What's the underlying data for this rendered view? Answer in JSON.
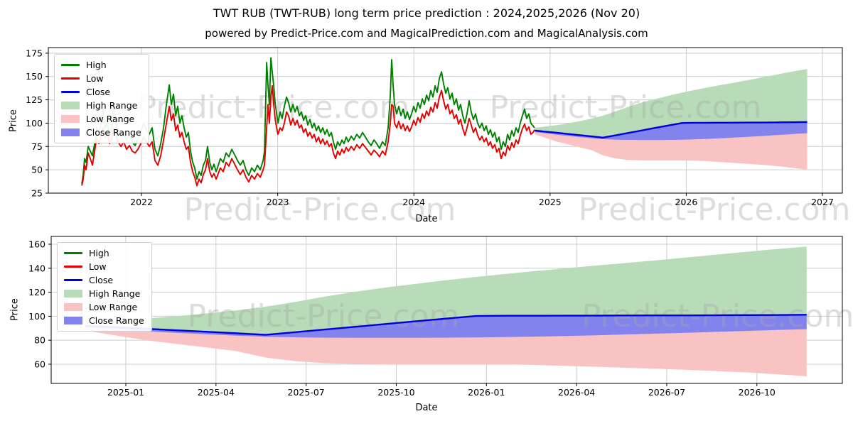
{
  "title": "TWT RUB (TWT-RUB) long term price prediction : 2024,2025,2026 (Nov 20)",
  "subtitle": "powered by Predict-Price.com and MagicalPrediction.com and MagicalAnalysis.com",
  "watermark": "Predict-Price.com",
  "colors": {
    "high": "#008000",
    "low": "#e30000",
    "close": "#0000dd",
    "high_fill": "#b7dcb7",
    "low_fill": "#f9c3c3",
    "close_fill": "#8383ee",
    "grid": "#cccccc",
    "spine": "#000000",
    "watermark_color": "#a6a6a6"
  },
  "legend": [
    {
      "label": "High",
      "swatch": "line",
      "color_key": "high"
    },
    {
      "label": "Low",
      "swatch": "line",
      "color_key": "low"
    },
    {
      "label": "Close",
      "swatch": "line",
      "color_key": "close"
    },
    {
      "label": "High Range",
      "swatch": "patch",
      "color_key": "high_fill"
    },
    {
      "label": "Low Range",
      "swatch": "patch",
      "color_key": "low_fill"
    },
    {
      "label": "Close Range",
      "swatch": "patch",
      "color_key": "close_fill"
    }
  ],
  "chart_data": [
    {
      "type": "line",
      "title": "",
      "xlabel": "Date",
      "ylabel": "Price",
      "xlim": [
        2021.316,
        2027.146
      ],
      "ylim": [
        25,
        181
      ],
      "yticks": [
        25,
        50,
        75,
        100,
        125,
        150,
        175
      ],
      "xticks": [
        {
          "v": 2022,
          "label": "2022"
        },
        {
          "v": 2023,
          "label": "2023"
        },
        {
          "v": 2024,
          "label": "2024"
        },
        {
          "v": 2025,
          "label": "2025"
        },
        {
          "v": 2026,
          "label": "2026"
        },
        {
          "v": 2027,
          "label": "2027"
        }
      ],
      "grid": true,
      "legend_position": "upper-left",
      "history_note": "columns: [year, high, low]",
      "history": [
        [
          2021.562,
          35,
          33
        ],
        [
          2021.572,
          45,
          40
        ],
        [
          2021.582,
          62,
          55
        ],
        [
          2021.593,
          58,
          50
        ],
        [
          2021.609,
          75,
          68
        ],
        [
          2021.624,
          70,
          62
        ],
        [
          2021.64,
          65,
          55
        ],
        [
          2021.656,
          78,
          70
        ],
        [
          2021.671,
          95,
          85
        ],
        [
          2021.687,
          90,
          78
        ],
        [
          2021.703,
          100,
          88
        ],
        [
          2021.718,
          115,
          95
        ],
        [
          2021.734,
          95,
          85
        ],
        [
          2021.749,
          100,
          90
        ],
        [
          2021.765,
          88,
          78
        ],
        [
          2021.781,
          95,
          83
        ],
        [
          2021.796,
          118,
          95
        ],
        [
          2021.812,
          100,
          88
        ],
        [
          2021.828,
          92,
          80
        ],
        [
          2021.849,
          85,
          75
        ],
        [
          2021.87,
          90,
          80
        ],
        [
          2021.89,
          82,
          72
        ],
        [
          2021.911,
          88,
          76
        ],
        [
          2021.932,
          80,
          70
        ],
        [
          2021.953,
          76,
          68
        ],
        [
          2021.974,
          83,
          72
        ],
        [
          2021.995,
          90,
          78
        ],
        [
          2022.016,
          100,
          85
        ],
        [
          2022.037,
          92,
          80
        ],
        [
          2022.057,
          88,
          75
        ],
        [
          2022.078,
          95,
          80
        ],
        [
          2022.099,
          72,
          60
        ],
        [
          2022.12,
          65,
          55
        ],
        [
          2022.141,
          78,
          65
        ],
        [
          2022.162,
          95,
          82
        ],
        [
          2022.183,
          120,
          100
        ],
        [
          2022.204,
          141,
          118
        ],
        [
          2022.219,
          120,
          103
        ],
        [
          2022.235,
          131,
          110
        ],
        [
          2022.251,
          108,
          92
        ],
        [
          2022.266,
          118,
          98
        ],
        [
          2022.282,
          100,
          85
        ],
        [
          2022.297,
          108,
          90
        ],
        [
          2022.313,
          95,
          80
        ],
        [
          2022.329,
          85,
          72
        ],
        [
          2022.344,
          90,
          75
        ],
        [
          2022.36,
          70,
          58
        ],
        [
          2022.376,
          58,
          48
        ],
        [
          2022.391,
          52,
          42
        ],
        [
          2022.407,
          40,
          33
        ],
        [
          2022.423,
          48,
          40
        ],
        [
          2022.438,
          44,
          36
        ],
        [
          2022.454,
          55,
          45
        ],
        [
          2022.47,
          60,
          50
        ],
        [
          2022.485,
          75,
          62
        ],
        [
          2022.501,
          58,
          48
        ],
        [
          2022.517,
          50,
          42
        ],
        [
          2022.532,
          56,
          46
        ],
        [
          2022.548,
          48,
          40
        ],
        [
          2022.564,
          55,
          46
        ],
        [
          2022.579,
          62,
          52
        ],
        [
          2022.6,
          58,
          48
        ],
        [
          2022.621,
          68,
          58
        ],
        [
          2022.642,
          64,
          54
        ],
        [
          2022.663,
          72,
          62
        ],
        [
          2022.684,
          66,
          56
        ],
        [
          2022.705,
          60,
          50
        ],
        [
          2022.725,
          55,
          45
        ],
        [
          2022.746,
          60,
          50
        ],
        [
          2022.767,
          50,
          42
        ],
        [
          2022.788,
          44,
          37
        ],
        [
          2022.809,
          52,
          44
        ],
        [
          2022.83,
          48,
          40
        ],
        [
          2022.851,
          55,
          46
        ],
        [
          2022.872,
          50,
          42
        ],
        [
          2022.893,
          60,
          50
        ],
        [
          2022.903,
          70,
          55
        ],
        [
          2022.919,
          165,
          95
        ],
        [
          2022.929,
          140,
          120
        ],
        [
          2022.939,
          120,
          100
        ],
        [
          2022.95,
          170,
          128
        ],
        [
          2022.96,
          155,
          140
        ],
        [
          2022.971,
          140,
          120
        ],
        [
          2022.981,
          122,
          105
        ],
        [
          2022.992,
          110,
          95
        ],
        [
          2023.002,
          100,
          88
        ],
        [
          2023.018,
          112,
          95
        ],
        [
          2023.033,
          105,
          92
        ],
        [
          2023.049,
          118,
          100
        ],
        [
          2023.065,
          128,
          112
        ],
        [
          2023.08,
          122,
          108
        ],
        [
          2023.096,
          112,
          98
        ],
        [
          2023.112,
          120,
          105
        ],
        [
          2023.127,
          112,
          98
        ],
        [
          2023.143,
          118,
          103
        ],
        [
          2023.159,
          108,
          95
        ],
        [
          2023.174,
          112,
          98
        ],
        [
          2023.19,
          103,
          90
        ],
        [
          2023.206,
          108,
          94
        ],
        [
          2023.221,
          98,
          86
        ],
        [
          2023.237,
          104,
          90
        ],
        [
          2023.253,
          95,
          84
        ],
        [
          2023.268,
          100,
          88
        ],
        [
          2023.284,
          92,
          80
        ],
        [
          2023.3,
          97,
          85
        ],
        [
          2023.315,
          90,
          78
        ],
        [
          2023.331,
          95,
          83
        ],
        [
          2023.347,
          88,
          77
        ],
        [
          2023.362,
          93,
          81
        ],
        [
          2023.378,
          86,
          75
        ],
        [
          2023.394,
          90,
          78
        ],
        [
          2023.409,
          80,
          68
        ],
        [
          2023.425,
          72,
          62
        ],
        [
          2023.44,
          80,
          70
        ],
        [
          2023.456,
          76,
          66
        ],
        [
          2023.472,
          82,
          72
        ],
        [
          2023.487,
          78,
          68
        ],
        [
          2023.503,
          85,
          74
        ],
        [
          2023.519,
          80,
          70
        ],
        [
          2023.54,
          86,
          75
        ],
        [
          2023.56,
          82,
          71
        ],
        [
          2023.581,
          88,
          77
        ],
        [
          2023.602,
          84,
          73
        ],
        [
          2023.623,
          90,
          78
        ],
        [
          2023.644,
          85,
          74
        ],
        [
          2023.665,
          80,
          70
        ],
        [
          2023.686,
          76,
          66
        ],
        [
          2023.707,
          82,
          71
        ],
        [
          2023.727,
          78,
          68
        ],
        [
          2023.748,
          73,
          64
        ],
        [
          2023.769,
          80,
          70
        ],
        [
          2023.79,
          76,
          66
        ],
        [
          2023.811,
          95,
          80
        ],
        [
          2023.827,
          130,
          100
        ],
        [
          2023.837,
          168,
          120
        ],
        [
          2023.848,
          140,
          118
        ],
        [
          2023.858,
          120,
          100
        ],
        [
          2023.874,
          110,
          95
        ],
        [
          2023.889,
          118,
          102
        ],
        [
          2023.905,
          108,
          94
        ],
        [
          2023.921,
          115,
          99
        ],
        [
          2023.936,
          105,
          92
        ],
        [
          2023.952,
          112,
          97
        ],
        [
          2023.968,
          104,
          91
        ],
        [
          2023.983,
          110,
          96
        ],
        [
          2023.999,
          118,
          103
        ],
        [
          2024.014,
          112,
          98
        ],
        [
          2024.03,
          122,
          106
        ],
        [
          2024.046,
          116,
          101
        ],
        [
          2024.062,
          126,
          110
        ],
        [
          2024.077,
          120,
          105
        ],
        [
          2024.093,
          130,
          113
        ],
        [
          2024.109,
          124,
          108
        ],
        [
          2024.124,
          135,
          117
        ],
        [
          2024.14,
          128,
          112
        ],
        [
          2024.156,
          140,
          122
        ],
        [
          2024.171,
          133,
          116
        ],
        [
          2024.187,
          148,
          128
        ],
        [
          2024.203,
          155,
          135
        ],
        [
          2024.218,
          142,
          124
        ],
        [
          2024.234,
          132,
          115
        ],
        [
          2024.249,
          138,
          120
        ],
        [
          2024.265,
          126,
          110
        ],
        [
          2024.281,
          132,
          114
        ],
        [
          2024.296,
          120,
          105
        ],
        [
          2024.312,
          126,
          109
        ],
        [
          2024.328,
          114,
          99
        ],
        [
          2024.343,
          120,
          104
        ],
        [
          2024.359,
          108,
          94
        ],
        [
          2024.375,
          100,
          87
        ],
        [
          2024.39,
          110,
          95
        ],
        [
          2024.406,
          124,
          105
        ],
        [
          2024.421,
          112,
          98
        ],
        [
          2024.437,
          104,
          90
        ],
        [
          2024.453,
          110,
          95
        ],
        [
          2024.468,
          100,
          87
        ],
        [
          2024.484,
          95,
          82
        ],
        [
          2024.5,
          100,
          86
        ],
        [
          2024.516,
          92,
          80
        ],
        [
          2024.531,
          97,
          84
        ],
        [
          2024.547,
          88,
          76
        ],
        [
          2024.562,
          93,
          80
        ],
        [
          2024.578,
          85,
          73
        ],
        [
          2024.594,
          90,
          77
        ],
        [
          2024.609,
          80,
          69
        ],
        [
          2024.625,
          85,
          73
        ],
        [
          2024.641,
          72,
          62
        ],
        [
          2024.656,
          80,
          69
        ],
        [
          2024.672,
          75,
          65
        ],
        [
          2024.688,
          88,
          76
        ],
        [
          2024.703,
          82,
          71
        ],
        [
          2024.719,
          92,
          79
        ],
        [
          2024.734,
          86,
          74
        ],
        [
          2024.75,
          95,
          82
        ],
        [
          2024.766,
          90,
          78
        ],
        [
          2024.781,
          100,
          87
        ],
        [
          2024.797,
          108,
          94
        ],
        [
          2024.813,
          115,
          99
        ],
        [
          2024.828,
          105,
          92
        ],
        [
          2024.844,
          110,
          96
        ],
        [
          2024.859,
          100,
          88
        ],
        [
          2024.875,
          97,
          90
        ],
        [
          2024.886,
          95,
          93
        ]
      ]
    },
    {
      "type": "area",
      "title": "",
      "xlabel": "Date",
      "ylabel": "Price",
      "xlim": [
        2024.793,
        2026.987
      ],
      "ylim": [
        44,
        166.5
      ],
      "yticks": [
        60,
        80,
        100,
        120,
        140,
        160
      ],
      "xticks": [
        {
          "v": 2025.0,
          "label": "2025-01"
        },
        {
          "v": 2025.25,
          "label": "2025-04"
        },
        {
          "v": 2025.5,
          "label": "2025-07"
        },
        {
          "v": 2025.75,
          "label": "2025-10"
        },
        {
          "v": 2026.0,
          "label": "2026-01"
        },
        {
          "v": 2026.25,
          "label": "2026-04"
        },
        {
          "v": 2026.5,
          "label": "2026-07"
        },
        {
          "v": 2026.75,
          "label": "2026-10"
        }
      ],
      "grid": true,
      "legend_position": "upper-left",
      "prediction": {
        "dates": [
          "2024-11",
          "2024-12",
          "2025-01",
          "2025-02",
          "2025-03",
          "2025-04",
          "2025-05",
          "2025-06",
          "2025-07",
          "2025-08",
          "2025-09",
          "2025-10",
          "2025-11",
          "2025-12",
          "2026-01",
          "2026-02",
          "2026-03",
          "2026-04",
          "2026-05",
          "2026-06",
          "2026-07",
          "2026-08",
          "2026-09",
          "2026-10",
          "2026-11"
        ],
        "x": [
          2024.888,
          2024.971,
          2025.055,
          2025.138,
          2025.221,
          2025.305,
          2025.388,
          2025.471,
          2025.555,
          2025.638,
          2025.721,
          2025.805,
          2025.888,
          2025.971,
          2026.055,
          2026.138,
          2026.221,
          2026.305,
          2026.388,
          2026.471,
          2026.555,
          2026.638,
          2026.721,
          2026.805,
          2026.888
        ],
        "high_range_top": [
          95,
          96.5,
          98,
          100,
          102.2,
          104.8,
          108,
          112,
          116.5,
          120.5,
          124,
          127,
          130,
          132.8,
          135.3,
          137.7,
          140,
          142.2,
          144.4,
          146.6,
          149,
          151.3,
          153.7,
          156,
          158
        ],
        "close": [
          92,
          90.8,
          89.6,
          88.3,
          87.1,
          85.8,
          84.5,
          86.7,
          89,
          91.2,
          93.5,
          95.8,
          98,
          100.2,
          100.4,
          100.4,
          100.5,
          100.5,
          100.6,
          100.7,
          100.7,
          100.8,
          100.9,
          101,
          101.2
        ],
        "close_range_bottom": [
          90.5,
          89,
          87.5,
          86.2,
          85,
          83.8,
          82.8,
          82.4,
          82.1,
          82,
          82,
          82,
          82.1,
          82.3,
          82.6,
          83,
          83.5,
          84.1,
          84.8,
          85.5,
          86.2,
          87,
          87.7,
          88.5,
          89.2
        ],
        "low_range_bottom": [
          88,
          84,
          80,
          77,
          74,
          71,
          65.5,
          62.5,
          60.8,
          60.3,
          60,
          60,
          60,
          60,
          59.8,
          59.3,
          58.6,
          57.8,
          57,
          56.2,
          55.3,
          54.3,
          53.2,
          51.6,
          50
        ]
      }
    }
  ]
}
